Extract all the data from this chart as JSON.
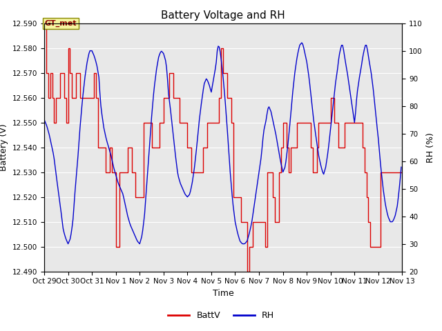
{
  "title": "Battery Voltage and RH",
  "xlabel": "Time",
  "ylabel_left": "Battery (V)",
  "ylabel_right": "RH (%)",
  "ylim_left": [
    12.49,
    12.59
  ],
  "ylim_right": [
    20,
    110
  ],
  "yticks_left": [
    12.49,
    12.5,
    12.51,
    12.52,
    12.53,
    12.54,
    12.55,
    12.56,
    12.57,
    12.58,
    12.59
  ],
  "yticks_right": [
    20,
    30,
    40,
    50,
    60,
    70,
    80,
    90,
    100,
    110
  ],
  "xtick_labels": [
    "Oct 29",
    "Oct 30",
    "Oct 31",
    "Nov 1",
    "Nov 2",
    "Nov 3",
    "Nov 4",
    "Nov 5",
    "Nov 6",
    "Nov 7",
    "Nov 8",
    "Nov 9",
    "Nov 10",
    "Nov 11",
    "Nov 12",
    "Nov 13"
  ],
  "annotation_text": "GT_met",
  "bg_color": "#e8e8e8",
  "line_color_batt": "#dd0000",
  "line_color_rh": "#0000cc",
  "legend_labels": [
    "BattV",
    "RH"
  ],
  "title_fontsize": 11,
  "axis_fontsize": 9,
  "tick_fontsize": 7.5,
  "legend_fontsize": 9
}
